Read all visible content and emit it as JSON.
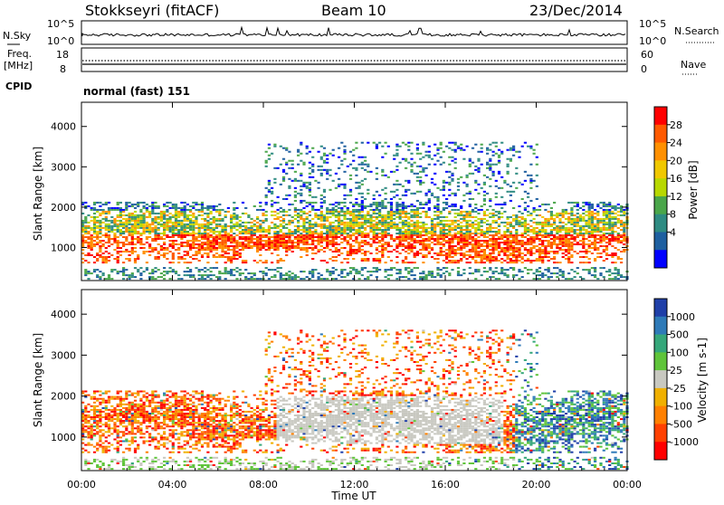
{
  "header": {
    "title": "Stokkseyri (fitACF)",
    "beam": "Beam 10",
    "date": "23/Dec/2014"
  },
  "status_panel": {
    "nsky_label": "N.Sky",
    "nsky_ticks": [
      "10^5",
      "10^0"
    ],
    "nsearch_label": "N.Search",
    "freq_label_line1": "Freq.",
    "freq_label_line2": "[MHz]",
    "freq_ticks": [
      "18",
      "8"
    ],
    "nave_label": "Nave",
    "nave_ticks": [
      "60",
      "0"
    ],
    "cpid_label": "CPID",
    "cpid_value": "normal (fast) 151"
  },
  "chart_data": [
    {
      "type": "heatmap",
      "name": "power-panel",
      "ylabel": "Slant Range [km]",
      "xlabel": "",
      "y_ticks": [
        1000,
        2000,
        3000,
        4000
      ],
      "ylim": [
        180,
        4600
      ],
      "x_ticks": [
        "00:00",
        "04:00",
        "08:00",
        "12:00",
        "16:00",
        "20:00",
        "00:00"
      ],
      "xlim_hours": [
        0,
        24
      ],
      "colorbar": {
        "label": "Power [dB]",
        "ticks": [
          "28",
          "24",
          "20",
          "16",
          "12",
          "8",
          "4"
        ],
        "colors": [
          "#ff0000",
          "#ff5a00",
          "#ff9000",
          "#f0c800",
          "#b8d800",
          "#4aa64a",
          "#2e8b82",
          "#1e5fa0",
          "#0000ff"
        ]
      }
    },
    {
      "type": "heatmap",
      "name": "velocity-panel",
      "ylabel": "Slant Range [km]",
      "xlabel": "Time UT",
      "y_ticks": [
        1000,
        2000,
        3000,
        4000
      ],
      "ylim": [
        180,
        4600
      ],
      "x_ticks": [
        "00:00",
        "04:00",
        "08:00",
        "12:00",
        "16:00",
        "20:00",
        "00:00"
      ],
      "xlim_hours": [
        0,
        24
      ],
      "colorbar": {
        "label": "Velocity [m s-1]",
        "ticks": [
          "1000",
          "500",
          "100",
          "25",
          "-25",
          "-100",
          "-500",
          "-1000"
        ],
        "colors": [
          "#1f3fa8",
          "#2e7ab8",
          "#35a77a",
          "#5fc43a",
          "#c8c8c0",
          "#f0b000",
          "#ff8000",
          "#ff4000",
          "#ff0000"
        ]
      }
    }
  ]
}
